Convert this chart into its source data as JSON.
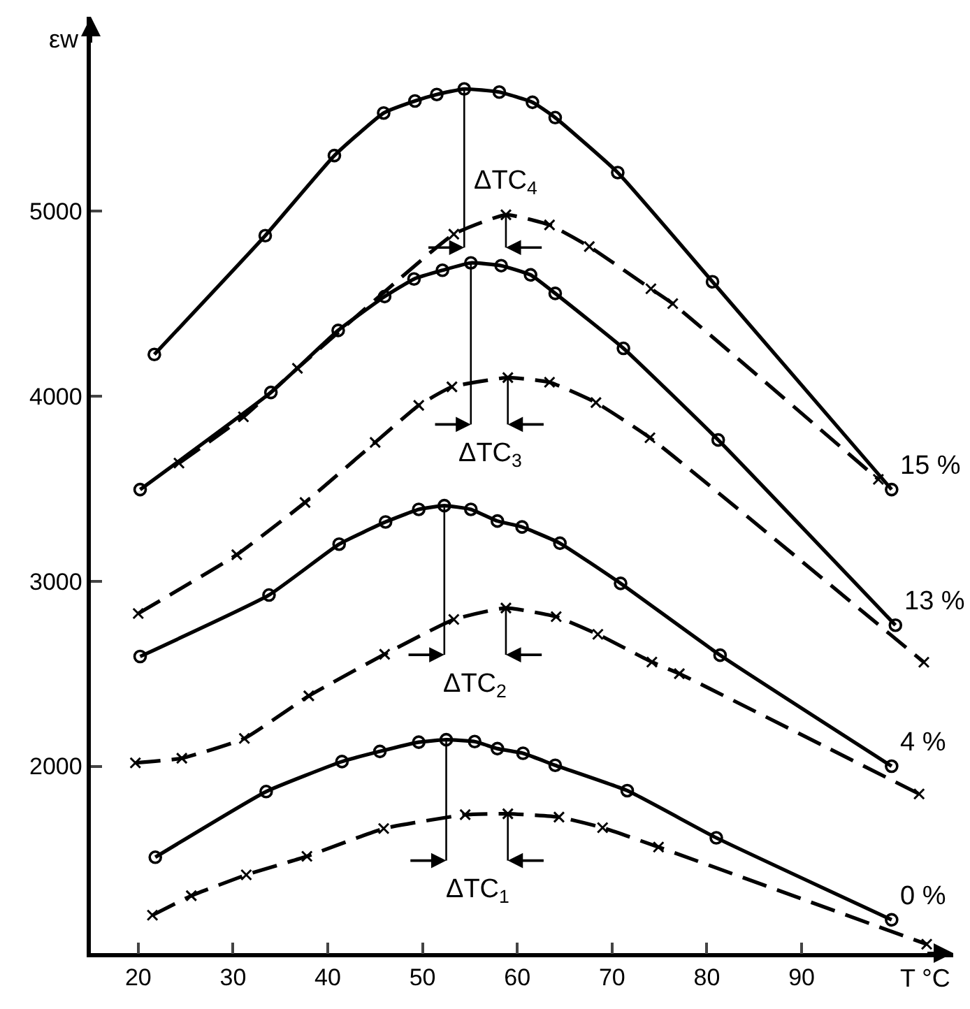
{
  "chart_data": {
    "type": "line",
    "xlabel": "T °C",
    "ylabel": "εw",
    "xlim": [
      15,
      106
    ],
    "ylim": [
      990,
      6050
    ],
    "xticks": [
      20,
      30,
      40,
      50,
      60,
      70,
      80,
      90
    ],
    "yticks": [
      2000,
      3000,
      4000,
      5000
    ],
    "legend": false,
    "series": [
      {
        "name": "0 %",
        "color": "#000000",
        "marker": "circle",
        "line_style": "solid",
        "x": [
          21.8,
          33.5,
          41.5,
          45.5,
          49.6,
          52.5,
          55.5,
          57.9,
          60.6,
          64.0,
          71.6,
          81.0,
          99.5
        ],
        "values": [
          1508,
          1863,
          2025,
          2080,
          2130,
          2143,
          2133,
          2095,
          2070,
          2005,
          1868,
          1613,
          1170
        ]
      },
      {
        "color": "#000000",
        "marker": "cross",
        "line_style": "dashed",
        "x": [
          21.5,
          25.6,
          31.4,
          37.8,
          45.9,
          54.5,
          59.0,
          64.4,
          69.0,
          74.9,
          103.2
        ],
        "values": [
          1195,
          1300,
          1413,
          1513,
          1663,
          1738,
          1743,
          1725,
          1668,
          1563,
          1038
        ]
      },
      {
        "name": "4 %",
        "color": "#000000",
        "marker": "circle",
        "line_style": "solid",
        "x": [
          20.2,
          33.8,
          41.2,
          46.1,
          49.6,
          52.3,
          55.1,
          57.9,
          60.5,
          64.5,
          70.9,
          81.4,
          99.5
        ],
        "values": [
          2593,
          2925,
          3200,
          3320,
          3388,
          3408,
          3388,
          3325,
          3293,
          3205,
          2988,
          2600,
          2000
        ]
      },
      {
        "color": "#000000",
        "marker": "cross",
        "line_style": "dashed",
        "x": [
          19.7,
          24.6,
          31.2,
          38.0,
          46.0,
          53.3,
          58.8,
          64.1,
          68.5,
          74.2,
          77.1,
          102.4
        ],
        "values": [
          2018,
          2043,
          2150,
          2380,
          2605,
          2793,
          2855,
          2808,
          2713,
          2563,
          2500,
          1850
        ]
      },
      {
        "name": "13 %",
        "color": "#000000",
        "marker": "circle",
        "line_style": "solid",
        "x": [
          20.2,
          34.0,
          41.1,
          46.0,
          49.1,
          52.1,
          55.1,
          58.3,
          61.4,
          64.0,
          71.2,
          81.2,
          99.9
        ],
        "values": [
          3495,
          4020,
          4355,
          4538,
          4633,
          4680,
          4720,
          4705,
          4655,
          4555,
          4258,
          3763,
          2762
        ]
      },
      {
        "color": "#000000",
        "marker": "cross",
        "line_style": "dashed",
        "x": [
          20.0,
          30.4,
          37.6,
          45.0,
          49.6,
          53.1,
          59.0,
          63.4,
          68.3,
          74.0,
          102.9
        ],
        "values": [
          2825,
          3143,
          3425,
          3750,
          3950,
          4050,
          4100,
          4075,
          3965,
          3775,
          2562
        ]
      },
      {
        "name": "15 %",
        "color": "#000000",
        "marker": "circle",
        "line_style": "solid",
        "x": [
          21.7,
          33.4,
          40.7,
          45.9,
          49.2,
          51.5,
          54.4,
          58.1,
          61.6,
          64.0,
          70.6,
          80.6,
          99.5
        ],
        "values": [
          4225,
          4867,
          5300,
          5530,
          5595,
          5630,
          5660,
          5643,
          5588,
          5505,
          5208,
          4618,
          3495
        ]
      },
      {
        "color": "#000000",
        "marker": "cross",
        "line_style": "dashed",
        "x": [
          24.3,
          31.1,
          36.8,
          53.3,
          58.8,
          63.4,
          67.6,
          74.1,
          76.4,
          98.1
        ],
        "values": [
          3638,
          3888,
          4150,
          4875,
          4980,
          4925,
          4808,
          4580,
          4500,
          3550
        ]
      }
    ],
    "annotations": [
      "ΔTC$_{1}$",
      "ΔTC$_{2}$",
      "ΔTC$_{3}$",
      "ΔTC$_{4}$"
    ]
  }
}
